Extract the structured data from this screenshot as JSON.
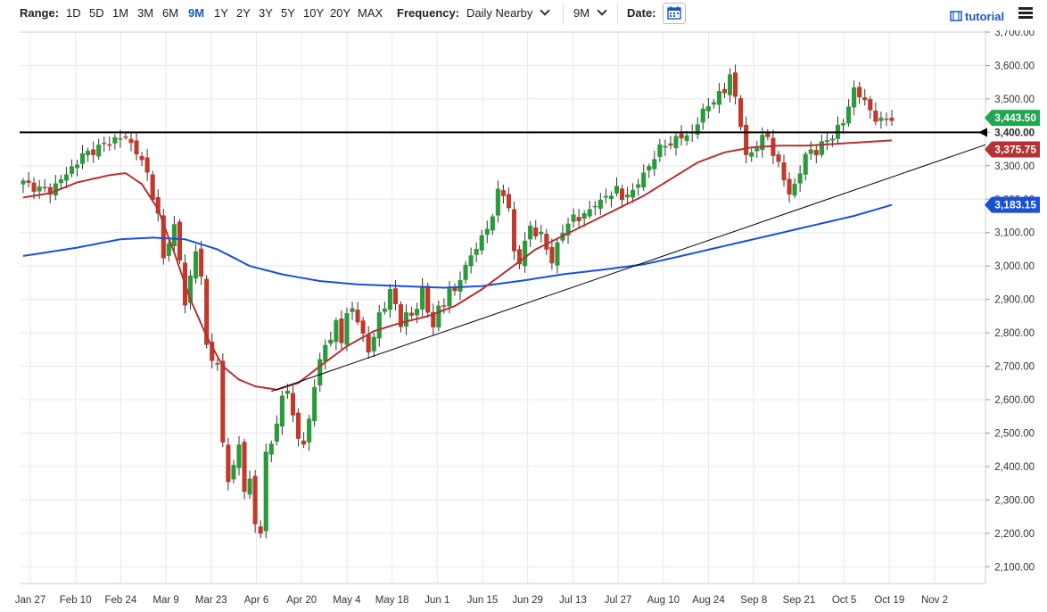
{
  "toolbar": {
    "range_label": "Range:",
    "ranges": [
      "1D",
      "5D",
      "1M",
      "3M",
      "6M",
      "9M",
      "1Y",
      "2Y",
      "3Y",
      "5Y",
      "10Y",
      "20Y",
      "MAX"
    ],
    "active_range": "9M",
    "frequency_label": "Frequency:",
    "frequency_value": "Daily Nearby",
    "period_value": "9M",
    "date_label": "Date:",
    "tutorial_label": "tutorial",
    "colors": {
      "active": "#1a57c5"
    }
  },
  "chart_data": {
    "type": "candlestick",
    "title": "",
    "xlabel": "",
    "ylabel": "",
    "ylim": [
      2050,
      3700
    ],
    "y_ticks": [
      2100,
      2200,
      2300,
      2400,
      2500,
      2600,
      2700,
      2800,
      2900,
      3000,
      3100,
      3200,
      3300,
      3400,
      3500,
      3600,
      3700
    ],
    "y_tick_labels": [
      "2,100.00",
      "2,200.00",
      "2,300.00",
      "2,400.00",
      "2,500.00",
      "2,600.00",
      "2,700.00",
      "2,800.00",
      "2,900.00",
      "3,000.00",
      "3,100.00",
      "3,200.00",
      "3,300.00",
      "3,400.00",
      "3,500.00",
      "3,600.00",
      "3,700.00"
    ],
    "x_tick_labels": [
      "Jan 27",
      "Feb 10",
      "Feb 24",
      "Mar 9",
      "Mar 23",
      "Apr 6",
      "Apr 20",
      "May 4",
      "May 18",
      "Jun 1",
      "Jun 15",
      "Jun 29",
      "Jul 13",
      "Jul 27",
      "Aug 10",
      "Aug 24",
      "Sep 8",
      "Sep 21",
      "Oct 5",
      "Oct 19",
      "Nov 2"
    ],
    "price_keypoints": [
      [
        0,
        3250
      ],
      [
        3,
        3230
      ],
      [
        5,
        3225
      ],
      [
        8,
        3275
      ],
      [
        11,
        3330
      ],
      [
        14,
        3355
      ],
      [
        17,
        3380
      ],
      [
        19,
        3385
      ],
      [
        21,
        3345
      ],
      [
        23,
        3275
      ],
      [
        25,
        3150
      ],
      [
        26,
        3020
      ],
      [
        27,
        3075
      ],
      [
        28,
        3120
      ],
      [
        29,
        3020
      ],
      [
        30,
        2880
      ],
      [
        32,
        3055
      ],
      [
        33,
        2960
      ],
      [
        34,
        2760
      ],
      [
        36,
        2700
      ],
      [
        37,
        2470
      ],
      [
        38,
        2360
      ],
      [
        39,
        2400
      ],
      [
        40,
        2470
      ],
      [
        41,
        2320
      ],
      [
        42,
        2360
      ],
      [
        43,
        2240
      ],
      [
        44,
        2190
      ],
      [
        45,
        2440
      ],
      [
        46,
        2480
      ],
      [
        47,
        2520
      ],
      [
        48,
        2610
      ],
      [
        49,
        2630
      ],
      [
        50,
        2550
      ],
      [
        51,
        2490
      ],
      [
        52,
        2460
      ],
      [
        53,
        2540
      ],
      [
        54,
        2650
      ],
      [
        55,
        2710
      ],
      [
        56,
        2760
      ],
      [
        57,
        2790
      ],
      [
        58,
        2830
      ],
      [
        59,
        2770
      ],
      [
        60,
        2860
      ],
      [
        61,
        2870
      ],
      [
        62,
        2840
      ],
      [
        63,
        2790
      ],
      [
        64,
        2740
      ],
      [
        65,
        2800
      ],
      [
        66,
        2850
      ],
      [
        67,
        2870
      ],
      [
        68,
        2940
      ],
      [
        69,
        2880
      ],
      [
        70,
        2820
      ],
      [
        71,
        2860
      ],
      [
        72,
        2850
      ],
      [
        73,
        2880
      ],
      [
        74,
        2930
      ],
      [
        75,
        2860
      ],
      [
        76,
        2830
      ],
      [
        77,
        2870
      ],
      [
        78,
        2880
      ],
      [
        79,
        2940
      ],
      [
        80,
        2920
      ],
      [
        81,
        2960
      ],
      [
        82,
        3000
      ],
      [
        83,
        3030
      ],
      [
        84,
        3060
      ],
      [
        85,
        3080
      ],
      [
        86,
        3110
      ],
      [
        87,
        3160
      ],
      [
        88,
        3220
      ],
      [
        89,
        3210
      ],
      [
        90,
        3180
      ],
      [
        91,
        3040
      ],
      [
        92,
        3010
      ],
      [
        93,
        3070
      ],
      [
        94,
        3120
      ],
      [
        95,
        3100
      ],
      [
        96,
        3090
      ],
      [
        97,
        3050
      ],
      [
        98,
        3020
      ],
      [
        99,
        3060
      ],
      [
        100,
        3100
      ],
      [
        101,
        3130
      ],
      [
        102,
        3150
      ],
      [
        103,
        3140
      ],
      [
        104,
        3150
      ],
      [
        105,
        3170
      ],
      [
        106,
        3190
      ],
      [
        107,
        3185
      ],
      [
        108,
        3210
      ],
      [
        109,
        3220
      ],
      [
        110,
        3230
      ],
      [
        111,
        3200
      ],
      [
        112,
        3215
      ],
      [
        113,
        3225
      ],
      [
        114,
        3250
      ],
      [
        115,
        3270
      ],
      [
        116,
        3300
      ],
      [
        117,
        3330
      ],
      [
        118,
        3350
      ],
      [
        119,
        3360
      ],
      [
        120,
        3370
      ],
      [
        121,
        3380
      ],
      [
        122,
        3385
      ],
      [
        123,
        3390
      ],
      [
        124,
        3400
      ],
      [
        125,
        3430
      ],
      [
        126,
        3460
      ],
      [
        127,
        3480
      ],
      [
        128,
        3500
      ],
      [
        129,
        3510
      ],
      [
        130,
        3520
      ],
      [
        131,
        3580
      ],
      [
        132,
        3500
      ],
      [
        133,
        3420
      ],
      [
        134,
        3330
      ],
      [
        135,
        3340
      ],
      [
        136,
        3360
      ],
      [
        137,
        3380
      ],
      [
        138,
        3390
      ],
      [
        139,
        3340
      ],
      [
        140,
        3300
      ],
      [
        141,
        3260
      ],
      [
        142,
        3220
      ],
      [
        143,
        3240
      ],
      [
        144,
        3280
      ],
      [
        145,
        3330
      ],
      [
        146,
        3350
      ],
      [
        147,
        3340
      ],
      [
        148,
        3360
      ],
      [
        149,
        3380
      ],
      [
        150,
        3390
      ],
      [
        151,
        3410
      ],
      [
        152,
        3430
      ],
      [
        153,
        3480
      ],
      [
        154,
        3530
      ],
      [
        155,
        3510
      ],
      [
        156,
        3490
      ],
      [
        157,
        3470
      ],
      [
        158,
        3440
      ],
      [
        159,
        3430
      ],
      [
        160,
        3445
      ],
      [
        161,
        3443
      ]
    ],
    "sma50_keypoints": [
      [
        0,
        3205
      ],
      [
        5,
        3218
      ],
      [
        10,
        3250
      ],
      [
        16,
        3272
      ],
      [
        19,
        3278
      ],
      [
        22,
        3245
      ],
      [
        25,
        3170
      ],
      [
        28,
        3040
      ],
      [
        31,
        2900
      ],
      [
        34,
        2790
      ],
      [
        37,
        2700
      ],
      [
        40,
        2660
      ],
      [
        43,
        2640
      ],
      [
        47,
        2630
      ],
      [
        51,
        2650
      ],
      [
        55,
        2700
      ],
      [
        60,
        2760
      ],
      [
        65,
        2805
      ],
      [
        70,
        2830
      ],
      [
        75,
        2850
      ],
      [
        80,
        2880
      ],
      [
        85,
        2930
      ],
      [
        90,
        2990
      ],
      [
        95,
        3050
      ],
      [
        100,
        3090
      ],
      [
        105,
        3130
      ],
      [
        110,
        3170
      ],
      [
        115,
        3210
      ],
      [
        120,
        3260
      ],
      [
        125,
        3310
      ],
      [
        130,
        3340
      ],
      [
        135,
        3355
      ],
      [
        140,
        3360
      ],
      [
        145,
        3360
      ],
      [
        150,
        3365
      ],
      [
        155,
        3370
      ],
      [
        161,
        3376
      ]
    ],
    "sma200_keypoints": [
      [
        0,
        3030
      ],
      [
        10,
        3055
      ],
      [
        18,
        3080
      ],
      [
        24,
        3085
      ],
      [
        30,
        3080
      ],
      [
        36,
        3050
      ],
      [
        42,
        3000
      ],
      [
        48,
        2975
      ],
      [
        55,
        2955
      ],
      [
        62,
        2945
      ],
      [
        70,
        2940
      ],
      [
        78,
        2935
      ],
      [
        85,
        2940
      ],
      [
        92,
        2955
      ],
      [
        100,
        2975
      ],
      [
        108,
        2990
      ],
      [
        115,
        3005
      ],
      [
        122,
        3030
      ],
      [
        130,
        3060
      ],
      [
        138,
        3090
      ],
      [
        146,
        3120
      ],
      [
        154,
        3150
      ],
      [
        161,
        3183
      ]
    ],
    "trendline": {
      "from": [
        46,
        2625
      ],
      "to": [
        185,
        3400
      ]
    },
    "horizontal_line": {
      "value": 3400,
      "label": "3,400.00"
    },
    "price_labels": [
      {
        "text": "3,443.50",
        "value": 3443.5,
        "color": "#22a653"
      },
      {
        "text": "3,375.75",
        "value": 3375.75,
        "color": "#b33234"
      },
      {
        "text": "3,183.15",
        "value": 3183.15,
        "color": "#1a4fd6"
      }
    ],
    "grid": true,
    "candle_count": 162,
    "colors": {
      "up": "#2a9a3b",
      "down": "#c0392b",
      "sma50": "#b33234",
      "sma200": "#1a4fd6",
      "line": "#000000",
      "grid": "#e8e8e8"
    }
  }
}
